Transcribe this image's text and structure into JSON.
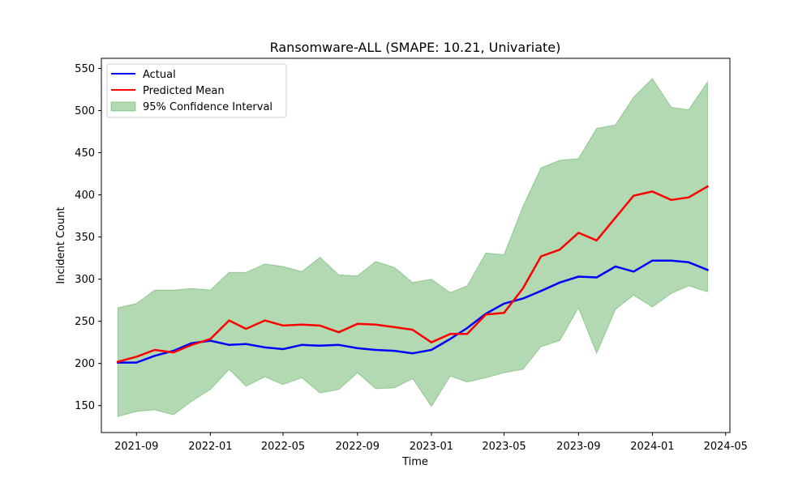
{
  "chart_data": {
    "type": "line",
    "title": "Ransomware-ALL (SMAPE: 10.21, Univariate)",
    "xlabel": "Time",
    "ylabel": "Incident Count",
    "x": [
      "2021-08",
      "2021-09",
      "2021-10",
      "2021-11",
      "2021-12",
      "2022-01",
      "2022-02",
      "2022-03",
      "2022-04",
      "2022-05",
      "2022-06",
      "2022-07",
      "2022-08",
      "2022-09",
      "2022-10",
      "2022-11",
      "2022-12",
      "2023-01",
      "2023-02",
      "2023-03",
      "2023-04",
      "2023-05",
      "2023-06",
      "2023-07",
      "2023-08",
      "2023-09",
      "2023-10",
      "2023-11",
      "2023-12",
      "2024-01",
      "2024-02",
      "2024-03",
      "2024-04"
    ],
    "xlim": [
      "2021-07-05",
      "2024-05-08"
    ],
    "ylim": [
      118,
      562
    ],
    "xticks": [
      "2021-09",
      "2022-01",
      "2022-05",
      "2022-09",
      "2023-01",
      "2023-05",
      "2023-09",
      "2024-01",
      "2024-05"
    ],
    "yticks": [
      150,
      200,
      250,
      300,
      350,
      400,
      450,
      500,
      550
    ],
    "series": [
      {
        "name": "Actual",
        "color": "#0000ff",
        "values": [
          201,
          201,
          209,
          215,
          224,
          227,
          222,
          223,
          219,
          217,
          222,
          221,
          222,
          218,
          216,
          215,
          212,
          216,
          229,
          242,
          259,
          271,
          277,
          286,
          296,
          303,
          302,
          315,
          309,
          322,
          322,
          320,
          311
        ]
      },
      {
        "name": "Predicted Mean",
        "color": "#ff0000",
        "values": [
          202,
          208,
          216,
          213,
          222,
          229,
          251,
          241,
          251,
          245,
          246,
          245,
          237,
          247,
          246,
          243,
          240,
          225,
          235,
          235,
          258,
          260,
          289,
          327,
          335,
          355,
          346,
          373,
          399,
          404,
          394,
          397,
          410
        ]
      }
    ],
    "confidence_interval": {
      "name": "95% Confidence Interval",
      "color": "#008000",
      "lower": [
        137,
        143,
        145,
        139,
        155,
        169,
        193,
        173,
        184,
        175,
        183,
        165,
        169,
        189,
        170,
        171,
        182,
        149,
        185,
        178,
        183,
        189,
        193,
        220,
        227,
        266,
        212,
        264,
        281,
        267,
        283,
        292,
        285
      ],
      "upper": [
        266,
        271,
        287,
        287,
        289,
        287,
        308,
        308,
        318,
        315,
        309,
        326,
        305,
        304,
        321,
        314,
        296,
        300,
        284,
        292,
        331,
        329,
        386,
        432,
        441,
        443,
        479,
        483,
        516,
        538,
        504,
        501,
        534
      ]
    },
    "legend": "top-left",
    "grid": false
  }
}
